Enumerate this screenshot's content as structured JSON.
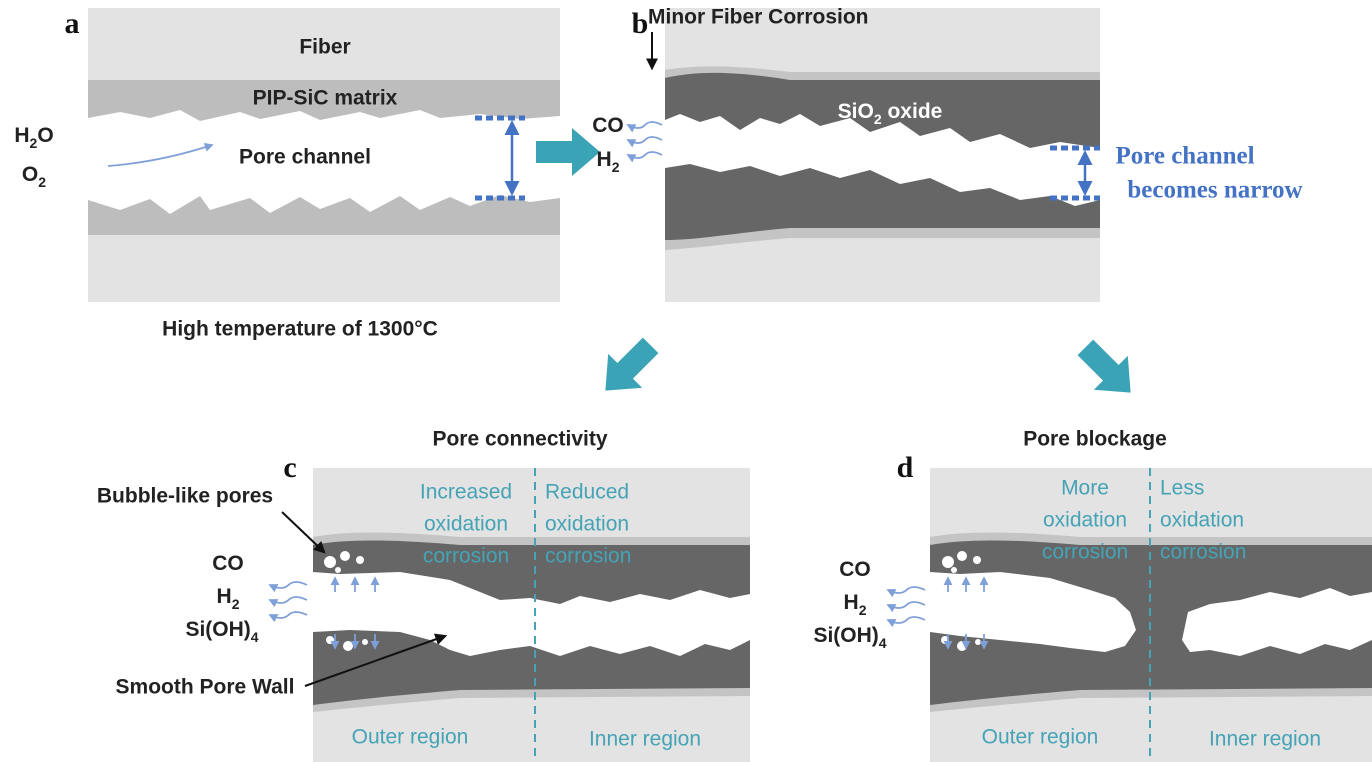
{
  "panel_a": {
    "label": "a",
    "fiber": "Fiber",
    "matrix": "PIP-SiC matrix",
    "pore": "Pore channel",
    "gas_in": [
      [
        "H",
        "2",
        "O"
      ],
      [
        "O",
        "2"
      ]
    ],
    "caption": "High temperature of 1300°C"
  },
  "panel_b": {
    "label": "b",
    "note": "Minor Fiber Corrosion",
    "oxide": [
      "SiO",
      "2",
      " oxide"
    ],
    "gas_out": [
      [
        "CO"
      ],
      [
        "H",
        "2"
      ]
    ],
    "pore_note": [
      "Pore channel",
      "becomes narrow"
    ]
  },
  "panel_c": {
    "label": "c",
    "title": "Pore connectivity",
    "outer_text": [
      "Increased",
      "oxidation",
      "corrosion"
    ],
    "inner_text": [
      "Reduced",
      "oxidation",
      "corrosion"
    ],
    "regions": [
      "Outer region",
      "Inner region"
    ],
    "gas_out": [
      [
        "CO"
      ],
      [
        "H",
        "2"
      ],
      [
        "Si(OH)",
        "4"
      ]
    ],
    "callouts": [
      "Bubble-like pores",
      "Smooth Pore Wall"
    ]
  },
  "panel_d": {
    "label": "d",
    "title": "Pore blockage",
    "outer_text": [
      "More",
      "oxidation",
      "corrosion"
    ],
    "inner_text": [
      "Less",
      "oxidation",
      "corrosion"
    ],
    "regions": [
      "Outer region",
      "Inner region"
    ],
    "gas_out": [
      [
        "CO"
      ],
      [
        "H",
        "2"
      ],
      [
        "Si(OH)",
        "4"
      ]
    ]
  }
}
